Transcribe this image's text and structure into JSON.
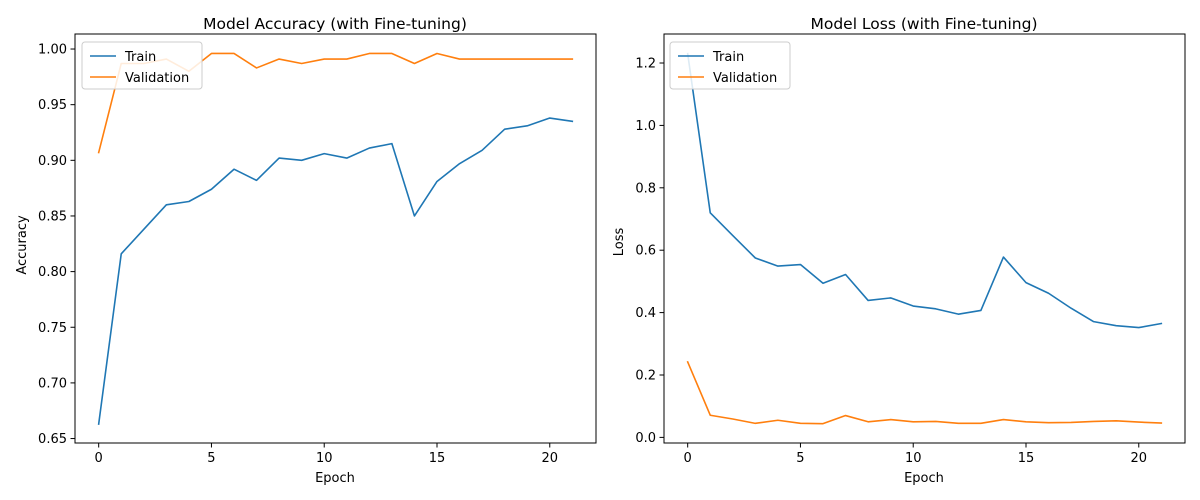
{
  "colors": {
    "train": "#1f77b4",
    "validation": "#ff7f0e"
  },
  "chart_data": [
    {
      "type": "line",
      "title": "Model Accuracy (with Fine-tuning)",
      "xlabel": "Epoch",
      "ylabel": "Accuracy",
      "xlim": [
        -1.05,
        22.05
      ],
      "ylim": [
        0.646,
        1.0135
      ],
      "xticks": [
        0,
        5,
        10,
        15,
        20
      ],
      "yticks": [
        0.65,
        0.7,
        0.75,
        0.8,
        0.85,
        0.9,
        0.95,
        1.0
      ],
      "ytick_labels": [
        "0.65",
        "0.70",
        "0.75",
        "0.80",
        "0.85",
        "0.90",
        "0.95",
        "1.00"
      ],
      "legend_position": "upper-left",
      "x": [
        0,
        1,
        2,
        3,
        4,
        5,
        6,
        7,
        8,
        9,
        10,
        11,
        12,
        13,
        14,
        15,
        16,
        17,
        18,
        19,
        20,
        21
      ],
      "series": [
        {
          "name": "Train",
          "color_key": "train",
          "values": [
            0.663,
            0.816,
            0.838,
            0.86,
            0.863,
            0.874,
            0.892,
            0.882,
            0.902,
            0.9,
            0.906,
            0.902,
            0.911,
            0.915,
            0.85,
            0.881,
            0.897,
            0.909,
            0.928,
            0.931,
            0.938,
            0.935
          ]
        },
        {
          "name": "Validation",
          "color_key": "validation",
          "values": [
            0.907,
            0.987,
            0.987,
            0.991,
            0.98,
            0.996,
            0.996,
            0.983,
            0.991,
            0.987,
            0.991,
            0.991,
            0.996,
            0.996,
            0.987,
            0.996,
            0.991,
            0.991,
            0.991,
            0.991,
            0.991,
            0.991
          ]
        }
      ]
    },
    {
      "type": "line",
      "title": "Model Loss (with Fine-tuning)",
      "xlabel": "Epoch",
      "ylabel": "Loss",
      "xlim": [
        -1.05,
        22.05
      ],
      "ylim": [
        -0.018,
        1.293
      ],
      "xticks": [
        0,
        5,
        10,
        15,
        20
      ],
      "yticks": [
        0.0,
        0.2,
        0.4,
        0.6,
        0.8,
        1.0,
        1.2
      ],
      "ytick_labels": [
        "0.0",
        "0.2",
        "0.4",
        "0.6",
        "0.8",
        "1.0",
        "1.2"
      ],
      "legend_position": "upper-left",
      "x": [
        0,
        1,
        2,
        3,
        4,
        5,
        6,
        7,
        8,
        9,
        10,
        11,
        12,
        13,
        14,
        15,
        16,
        17,
        18,
        19,
        20,
        21
      ],
      "series": [
        {
          "name": "Train",
          "color_key": "train",
          "values": [
            1.23,
            0.72,
            0.647,
            0.575,
            0.549,
            0.554,
            0.494,
            0.522,
            0.439,
            0.447,
            0.421,
            0.412,
            0.395,
            0.407,
            0.578,
            0.496,
            0.462,
            0.414,
            0.371,
            0.358,
            0.352,
            0.365
          ]
        },
        {
          "name": "Validation",
          "color_key": "validation",
          "values": [
            0.242,
            0.071,
            0.059,
            0.045,
            0.055,
            0.045,
            0.044,
            0.07,
            0.05,
            0.057,
            0.05,
            0.051,
            0.045,
            0.045,
            0.057,
            0.05,
            0.047,
            0.048,
            0.051,
            0.053,
            0.049,
            0.046
          ]
        }
      ]
    }
  ]
}
